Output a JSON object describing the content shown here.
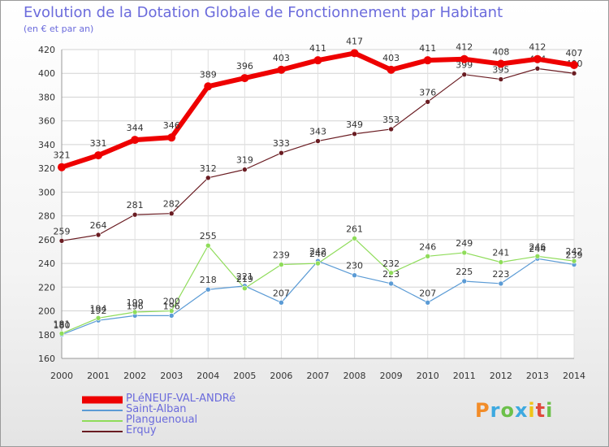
{
  "header": {
    "title": "Evolution de la Dotation Globale de Fonctionnement par Habitant",
    "subtitle": "(en € et par an)"
  },
  "logo": {
    "text": "Proxiti",
    "colors": [
      "#f28c28",
      "#3da9e0",
      "#6cc04a",
      "#3da9e0",
      "#f0c419",
      "#e04a3d",
      "#6cc04a"
    ]
  },
  "chart_data": {
    "type": "line",
    "x": [
      2000,
      2001,
      2002,
      2003,
      2004,
      2005,
      2006,
      2007,
      2008,
      2009,
      2010,
      2011,
      2012,
      2013,
      2014
    ],
    "ylim": [
      160,
      420
    ],
    "yticks": [
      160,
      180,
      200,
      220,
      240,
      260,
      280,
      300,
      320,
      340,
      360,
      380,
      400,
      420
    ],
    "grid": true,
    "legend_position": "bottom-left",
    "series": [
      {
        "name": "PLéNEUF-VAL-ANDRé",
        "color": "#ee0000",
        "width": 6,
        "values": [
          321,
          331,
          344,
          346,
          389,
          396,
          403,
          411,
          417,
          403,
          411,
          412,
          408,
          412,
          407
        ]
      },
      {
        "name": "Saint-Alban",
        "color": "#5b9bd5",
        "width": 1.2,
        "values": [
          180,
          192,
          196,
          196,
          218,
          221,
          207,
          242,
          230,
          223,
          207,
          225,
          223,
          244,
          239
        ]
      },
      {
        "name": "Planguenoual",
        "color": "#8fdc5a",
        "width": 1.2,
        "values": [
          181,
          194,
          199,
          200,
          255,
          219,
          239,
          240,
          261,
          232,
          246,
          249,
          241,
          246,
          242
        ]
      },
      {
        "name": "Erquy",
        "color": "#6a1c22",
        "width": 1.2,
        "values": [
          259,
          264,
          281,
          282,
          312,
          319,
          333,
          343,
          349,
          353,
          376,
          399,
          395,
          404,
          400
        ]
      }
    ]
  }
}
